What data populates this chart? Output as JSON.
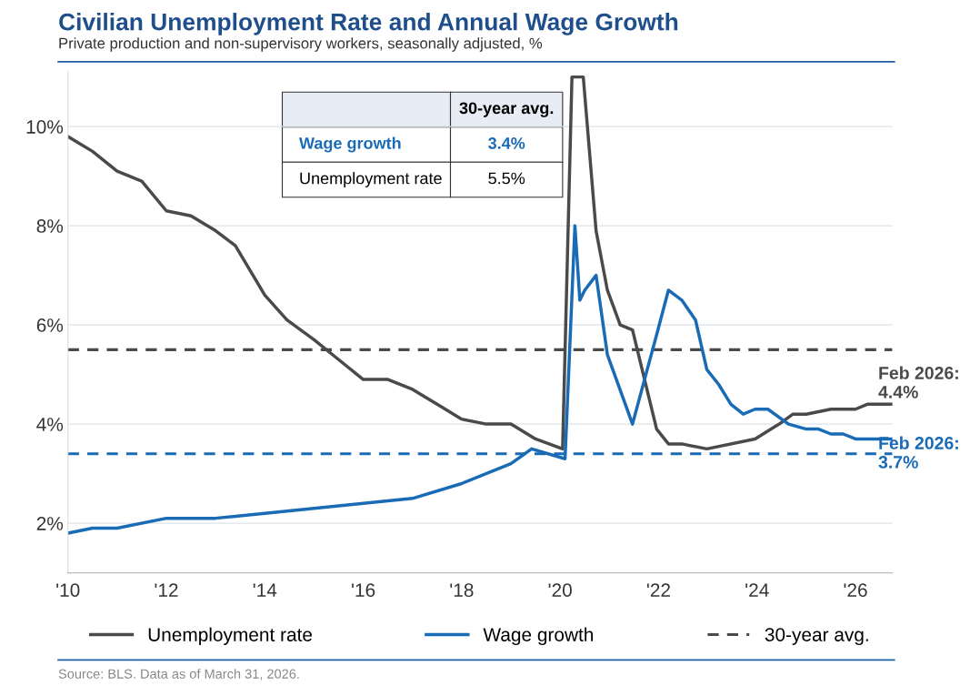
{
  "chart_data": {
    "type": "line",
    "title": "Civilian Unemployment Rate and Annual Wage Growth",
    "subtitle": "Private production and non-supervisory workers, seasonally adjusted, %",
    "series": [
      {
        "name": "Unemployment rate",
        "color": "#4a4a4a",
        "x": [
          2010,
          2010.5,
          2011,
          2011.5,
          2012,
          2012.5,
          2013,
          2013.4,
          2014,
          2014.45,
          2015,
          2015.5,
          2016,
          2016.5,
          2017,
          2017.5,
          2018,
          2018.5,
          2019,
          2019.5,
          2020.05,
          2020.24,
          2020.47,
          2020.73,
          2020.96,
          2021.22,
          2021.47,
          2021.96,
          2022.2,
          2022.47,
          2022.98,
          2023.96,
          2024.45,
          2024.73,
          2025.0,
          2025.5,
          2026.0,
          2026.24,
          2026.75
        ],
        "values": [
          9.8,
          9.5,
          9.1,
          8.9,
          8.3,
          8.2,
          7.9,
          7.6,
          6.6,
          6.1,
          5.7,
          5.3,
          4.9,
          4.9,
          4.7,
          4.4,
          4.1,
          4.0,
          4.0,
          3.7,
          3.5,
          11.0,
          11.0,
          7.9,
          6.7,
          6.0,
          5.9,
          3.9,
          3.6,
          3.6,
          3.5,
          3.7,
          4.0,
          4.2,
          4.2,
          4.3,
          4.3,
          4.4,
          4.4
        ]
      },
      {
        "name": "Wage growth",
        "color": "#1a6bb5",
        "x": [
          2010,
          2010.5,
          2011,
          2012,
          2013,
          2014,
          2015,
          2016,
          2017,
          2018,
          2019,
          2019.42,
          2020.1,
          2020.3,
          2020.4,
          2020.5,
          2020.73,
          2020.96,
          2021.47,
          2021.96,
          2022.2,
          2022.47,
          2022.75,
          2022.98,
          2023.22,
          2023.47,
          2023.72,
          2023.96,
          2024.22,
          2024.64,
          2025.0,
          2025.25,
          2025.5,
          2025.75,
          2026.0,
          2026.75
        ],
        "values": [
          1.8,
          1.9,
          1.9,
          2.1,
          2.1,
          2.2,
          2.3,
          2.4,
          2.5,
          2.8,
          3.2,
          3.5,
          3.3,
          8.0,
          6.5,
          6.7,
          7.0,
          5.4,
          4.0,
          5.8,
          6.7,
          6.5,
          6.1,
          5.1,
          4.8,
          4.4,
          4.2,
          4.3,
          4.3,
          4.0,
          3.9,
          3.9,
          3.8,
          3.8,
          3.7,
          3.7
        ]
      }
    ],
    "ref_lines": [
      {
        "axis": "y",
        "value": 5.5,
        "label": "30-year avg.",
        "color": "#4a4a4a",
        "line_style": "dashed"
      },
      {
        "axis": "y",
        "value": 3.4,
        "color": "#1a6bb5",
        "line_style": "dashed"
      }
    ],
    "xlim": [
      2010,
      2026.75
    ],
    "xticks": [
      {
        "value": 2010,
        "label": "'10"
      },
      {
        "value": 2012,
        "label": "'12"
      },
      {
        "value": 2014,
        "label": "'14"
      },
      {
        "value": 2016,
        "label": "'16"
      },
      {
        "value": 2018,
        "label": "'18"
      },
      {
        "value": 2020,
        "label": "'20"
      },
      {
        "value": 2022,
        "label": "'22"
      },
      {
        "value": 2024,
        "label": "'24"
      },
      {
        "value": 2026,
        "label": "'26"
      }
    ],
    "ylim": [
      1,
      11.1
    ],
    "yticks": [
      {
        "value": 2,
        "label": "2%"
      },
      {
        "value": 4,
        "label": "4%"
      },
      {
        "value": 6,
        "label": "6%"
      },
      {
        "value": 8,
        "label": "8%"
      },
      {
        "value": 10,
        "label": "10%"
      }
    ],
    "grid": "y",
    "legend": "bottom",
    "marker": "none",
    "line_style": "solid",
    "annotations": [
      {
        "text": "Feb 2026:\n4.4%",
        "x": 2026.0,
        "y": 4.4
      },
      {
        "text": "Feb 2026:\n3.7%",
        "x": 2026.0,
        "y": 3.7
      },
      "30-year avg.",
      "Wage growth",
      "3.4%",
      "Unemployment rate",
      "5.5%",
      "Source: BLS. Data as of March 31, 2026."
    ]
  }
}
